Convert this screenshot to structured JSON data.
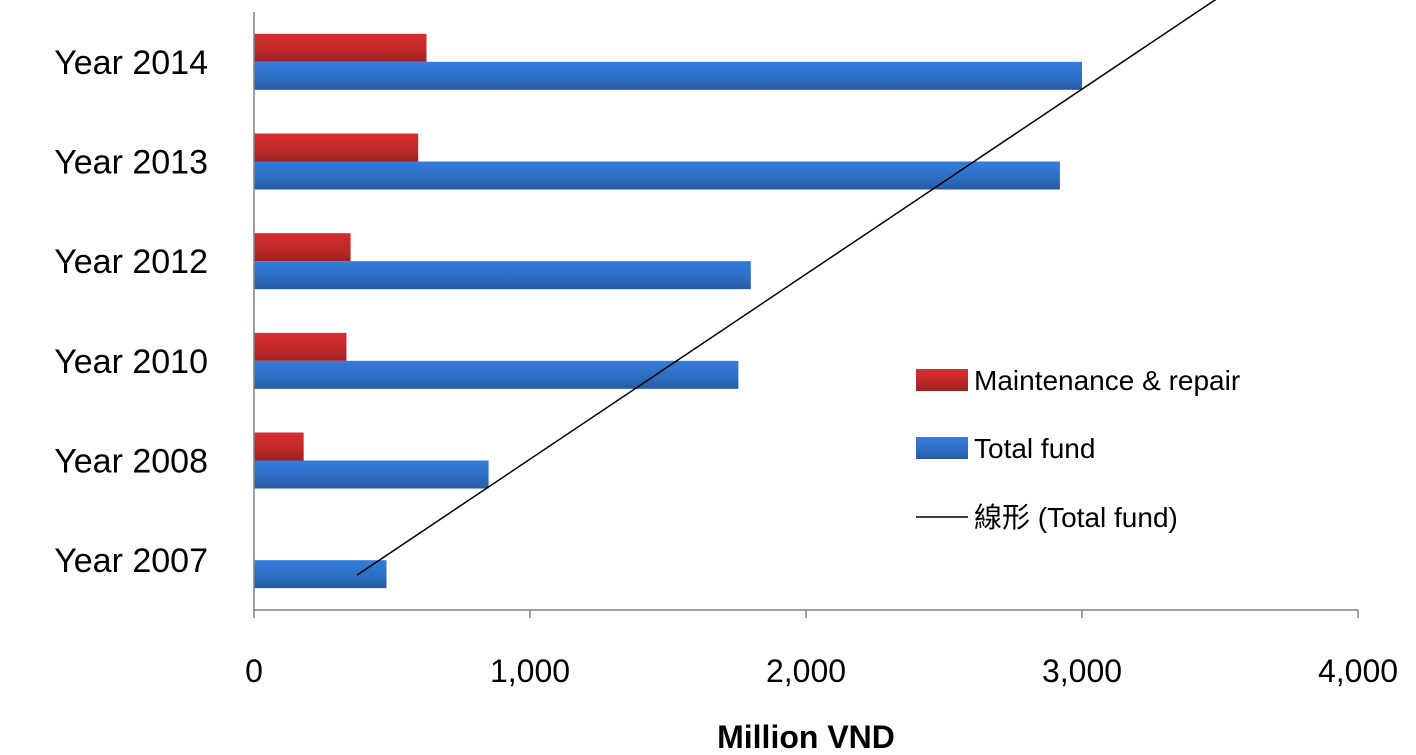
{
  "chart_data": {
    "type": "bar",
    "orientation": "horizontal",
    "categories": [
      "Year 2007",
      "Year 2008",
      "Year 2010",
      "Year 2012",
      "Year 2013",
      "Year 2014"
    ],
    "series": [
      {
        "name": "Maintenance & repair",
        "color": "#c0292b",
        "values": [
          0,
          180,
          335,
          350,
          595,
          625
        ]
      },
      {
        "name": "Total fund",
        "color": "#2e6fc4",
        "values": [
          480,
          850,
          1755,
          1800,
          2920,
          3000
        ]
      }
    ],
    "trendline": {
      "name": "線形 (Total fund)",
      "of_series": "Total fund",
      "type": "linear",
      "color": "#000000"
    },
    "xlabel": "Million VND",
    "ylabel": "",
    "xlim": [
      0,
      4000
    ],
    "xticks": [
      0,
      1000,
      2000,
      3000,
      4000
    ],
    "xtick_labels": [
      "0",
      "1,000",
      "2,000",
      "3,000",
      "4,000"
    ],
    "grid": false,
    "legend_position": "right"
  }
}
